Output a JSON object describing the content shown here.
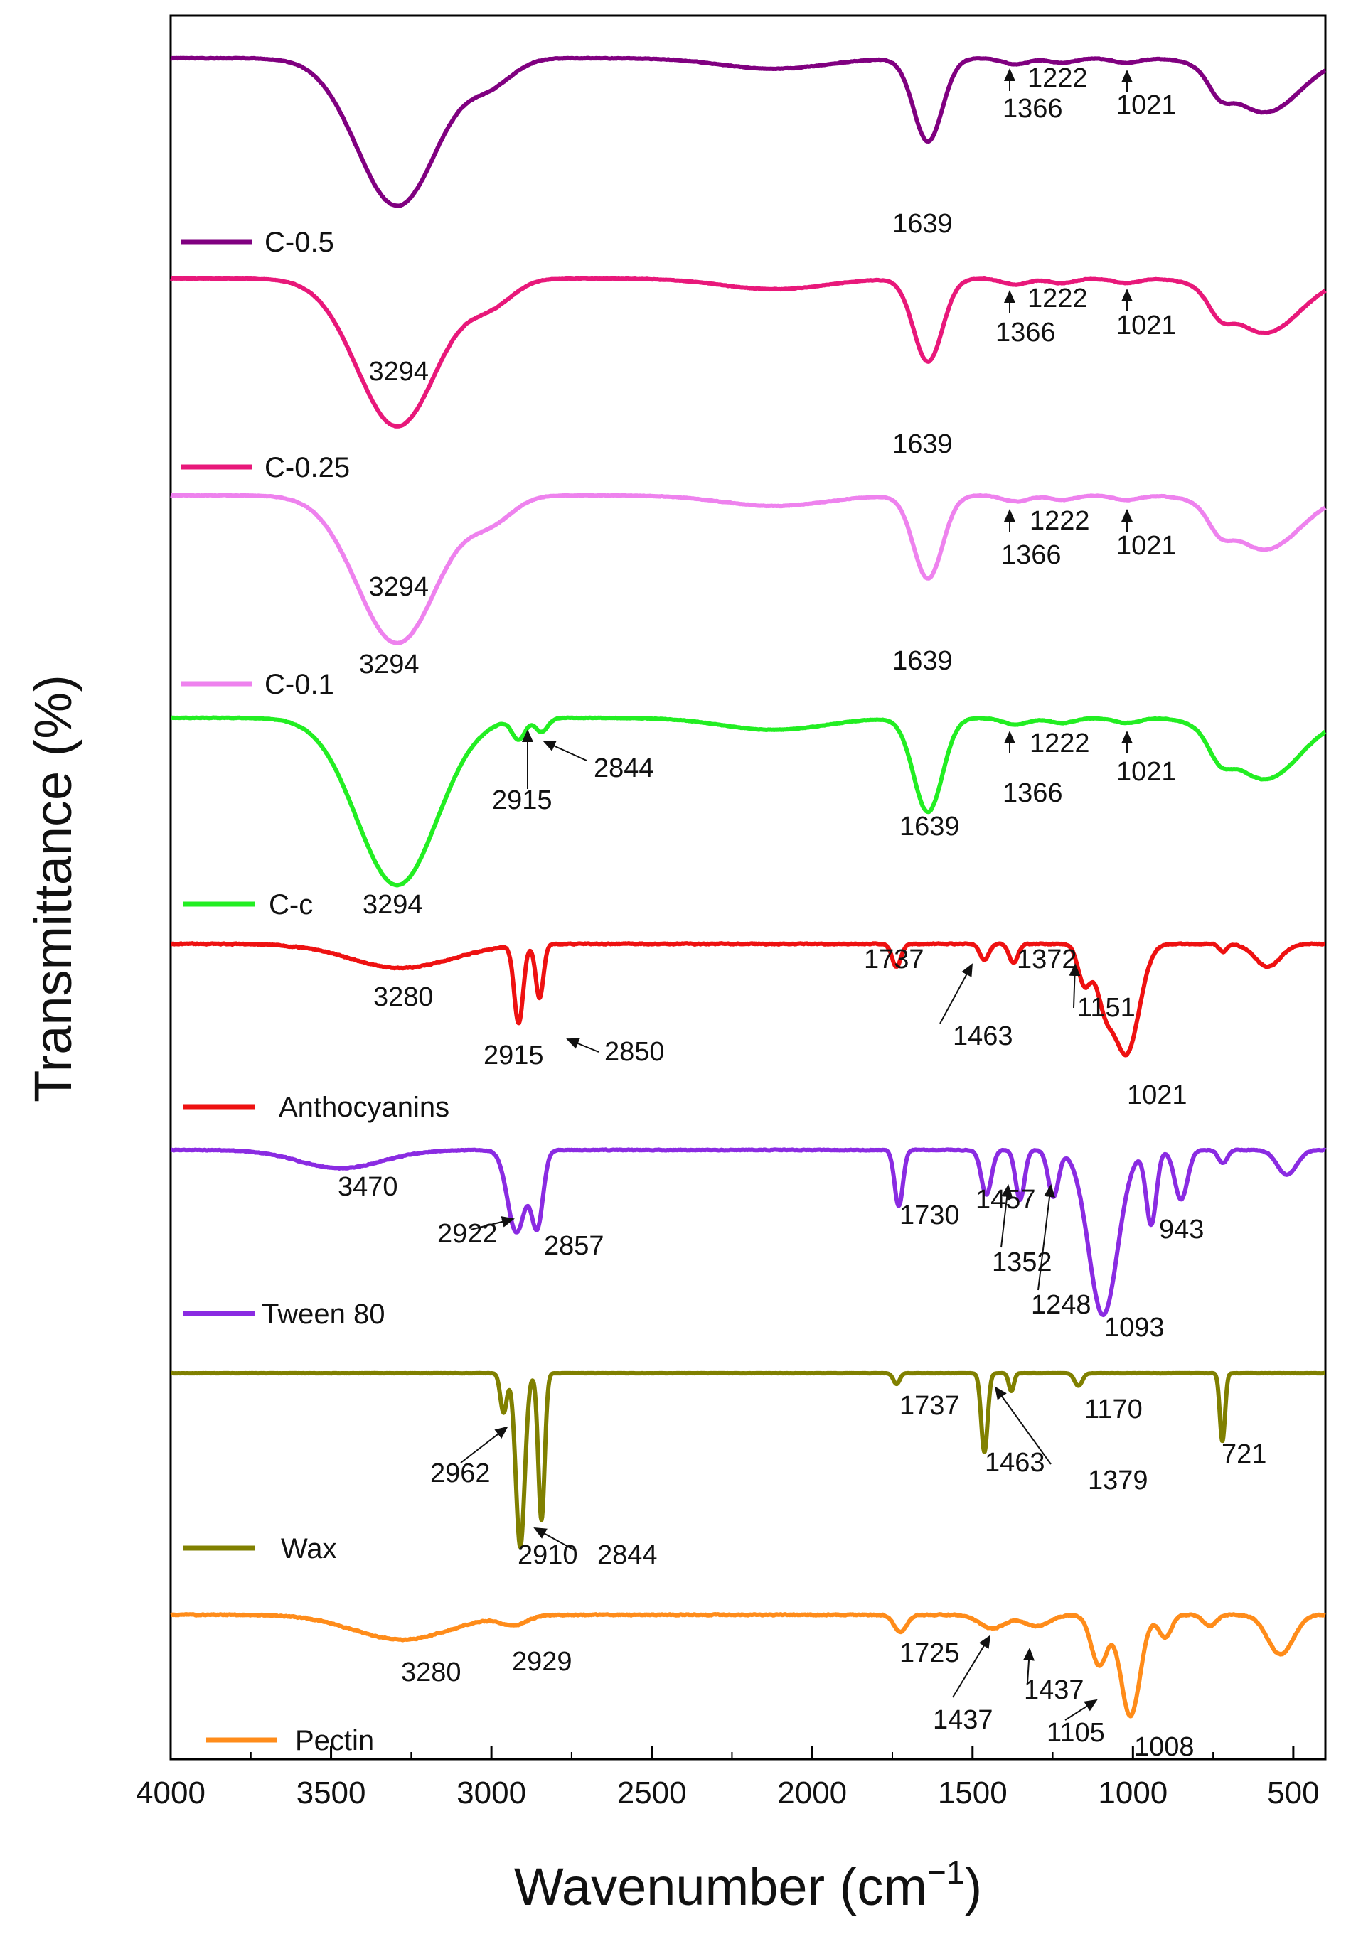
{
  "chart_data": {
    "type": "line",
    "title": "",
    "xlabel": "Wavenumber (cm⁻¹)",
    "xlabel_main": "Wavenumber (cm",
    "xlabel_sup": "−1",
    "xlabel_close": ")",
    "ylabel": "Transmittance (%)",
    "xlim": [
      4000,
      400
    ],
    "x_reversed": true,
    "xticks": [
      4000,
      3500,
      3000,
      2500,
      2000,
      1500,
      1000,
      500
    ],
    "yticks": "none (stacked, offset spectra)",
    "legend_placement": "below each spectrum, left",
    "series": [
      {
        "name": "C-0.5",
        "color": "#800080",
        "baseline": 0.0,
        "wiggle": 0.6,
        "bands": [
          [
            3294,
            125,
            0.98
          ],
          [
            3000,
            70,
            0.15
          ],
          [
            2120,
            160,
            0.07
          ],
          [
            1639,
            45,
            0.55
          ],
          [
            1366,
            40,
            0.04
          ],
          [
            1222,
            40,
            0.03
          ],
          [
            1021,
            40,
            0.03
          ],
          [
            730,
            35,
            0.12
          ],
          [
            590,
            110,
            0.36
          ]
        ],
        "peaks": [
          {
            "label": "3294",
            "wn": 3294
          },
          {
            "label": "1639",
            "wn": 1639
          },
          {
            "label": "1366",
            "wn": 1366
          },
          {
            "label": "1222",
            "wn": 1222
          },
          {
            "label": "1021",
            "wn": 1021
          }
        ]
      },
      {
        "name": "C-0.25",
        "color": "#e8187a",
        "baseline": 0.0,
        "wiggle": 0.6,
        "bands": [
          [
            3294,
            125,
            0.98
          ],
          [
            3000,
            70,
            0.15
          ],
          [
            2120,
            160,
            0.07
          ],
          [
            1639,
            45,
            0.55
          ],
          [
            1366,
            40,
            0.04
          ],
          [
            1222,
            40,
            0.03
          ],
          [
            1021,
            40,
            0.03
          ],
          [
            730,
            35,
            0.12
          ],
          [
            590,
            110,
            0.36
          ]
        ],
        "peaks": [
          {
            "label": "3294",
            "wn": 3294
          },
          {
            "label": "1639",
            "wn": 1639
          },
          {
            "label": "1366",
            "wn": 1366
          },
          {
            "label": "1222",
            "wn": 1222
          },
          {
            "label": "1021",
            "wn": 1021
          }
        ]
      },
      {
        "name": "C-0.1",
        "color": "#ee82ee",
        "baseline": 0.0,
        "wiggle": 0.6,
        "bands": [
          [
            3294,
            125,
            0.98
          ],
          [
            3000,
            70,
            0.15
          ],
          [
            2120,
            160,
            0.07
          ],
          [
            1639,
            45,
            0.55
          ],
          [
            1366,
            40,
            0.04
          ],
          [
            1222,
            40,
            0.03
          ],
          [
            1021,
            40,
            0.03
          ],
          [
            730,
            35,
            0.12
          ],
          [
            590,
            110,
            0.36
          ]
        ],
        "peaks": [
          {
            "label": "3294",
            "wn": 3294
          },
          {
            "label": "1639",
            "wn": 1639
          },
          {
            "label": "1366",
            "wn": 1366
          },
          {
            "label": "1222",
            "wn": 1222
          },
          {
            "label": "1021",
            "wn": 1021
          }
        ]
      },
      {
        "name": "C-c",
        "color": "#22ee22",
        "baseline": 0.0,
        "wiggle": 0.6,
        "bands": [
          [
            3294,
            125,
            0.98
          ],
          [
            2915,
            20,
            0.12
          ],
          [
            2844,
            20,
            0.08
          ],
          [
            2120,
            160,
            0.07
          ],
          [
            1639,
            45,
            0.55
          ],
          [
            1366,
            40,
            0.04
          ],
          [
            1222,
            40,
            0.03
          ],
          [
            1021,
            40,
            0.03
          ],
          [
            730,
            35,
            0.12
          ],
          [
            590,
            110,
            0.36
          ]
        ],
        "peaks": [
          {
            "label": "3294",
            "wn": 3294
          },
          {
            "label": "2915",
            "wn": 2915
          },
          {
            "label": "2844",
            "wn": 2844
          },
          {
            "label": "1639",
            "wn": 1639
          },
          {
            "label": "1366",
            "wn": 1366
          },
          {
            "label": "1222",
            "wn": 1222
          },
          {
            "label": "1021",
            "wn": 1021
          }
        ]
      },
      {
        "name": "Anthocyanins",
        "color": "#ee1111",
        "baseline": 0.0,
        "wiggle": 1.0,
        "bands": [
          [
            3280,
            160,
            0.18
          ],
          [
            2915,
            14,
            0.58
          ],
          [
            2850,
            12,
            0.4
          ],
          [
            1737,
            14,
            0.17
          ],
          [
            1463,
            14,
            0.12
          ],
          [
            1372,
            14,
            0.14
          ],
          [
            1151,
            20,
            0.3
          ],
          [
            1021,
            40,
            0.82
          ],
          [
            1090,
            25,
            0.35
          ],
          [
            720,
            12,
            0.06
          ],
          [
            580,
            40,
            0.17
          ]
        ],
        "peaks": [
          {
            "label": "3280",
            "wn": 3280
          },
          {
            "label": "2915",
            "wn": 2915
          },
          {
            "label": "2850",
            "wn": 2850
          },
          {
            "label": "1737",
            "wn": 1737
          },
          {
            "label": "1463",
            "wn": 1463
          },
          {
            "label": "1372",
            "wn": 1372
          },
          {
            "label": "1151",
            "wn": 1151
          },
          {
            "label": "1021",
            "wn": 1021
          }
        ]
      },
      {
        "name": "Tween 80",
        "color": "#8a2be2",
        "baseline": 0.0,
        "wiggle": 0.8,
        "bands": [
          [
            3470,
            130,
            0.11
          ],
          [
            2922,
            28,
            0.5
          ],
          [
            2857,
            18,
            0.45
          ],
          [
            1730,
            13,
            0.34
          ],
          [
            1457,
            16,
            0.27
          ],
          [
            1352,
            14,
            0.3
          ],
          [
            1248,
            16,
            0.28
          ],
          [
            1093,
            45,
            1.0
          ],
          [
            943,
            16,
            0.45
          ],
          [
            850,
            20,
            0.3
          ],
          [
            720,
            14,
            0.08
          ],
          [
            520,
            30,
            0.15
          ]
        ],
        "peaks": [
          {
            "label": "3470",
            "wn": 3470
          },
          {
            "label": "2922",
            "wn": 2922
          },
          {
            "label": "2857",
            "wn": 2857
          },
          {
            "label": "1730",
            "wn": 1730
          },
          {
            "label": "1457",
            "wn": 1457
          },
          {
            "label": "1352",
            "wn": 1352
          },
          {
            "label": "1248",
            "wn": 1248
          },
          {
            "label": "1093",
            "wn": 1093
          },
          {
            "label": "943",
            "wn": 943
          }
        ]
      },
      {
        "name": "Wax",
        "color": "#808000",
        "baseline": 0.0,
        "wiggle": 0.2,
        "bands": [
          [
            2962,
            10,
            0.22
          ],
          [
            2910,
            14,
            0.97
          ],
          [
            2844,
            10,
            0.82
          ],
          [
            1737,
            10,
            0.06
          ],
          [
            1463,
            10,
            0.44
          ],
          [
            1379,
            8,
            0.1
          ],
          [
            1170,
            12,
            0.07
          ],
          [
            721,
            8,
            0.38
          ]
        ],
        "peaks": [
          {
            "label": "2962",
            "wn": 2962
          },
          {
            "label": "2910",
            "wn": 2910
          },
          {
            "label": "2844",
            "wn": 2844
          },
          {
            "label": "1737",
            "wn": 1737
          },
          {
            "label": "1463",
            "wn": 1463
          },
          {
            "label": "1379",
            "wn": 1379
          },
          {
            "label": "1170",
            "wn": 1170
          },
          {
            "label": "721",
            "wn": 721
          }
        ]
      },
      {
        "name": "Pectin",
        "color": "#ff8c1a",
        "baseline": 0.0,
        "wiggle": 1.1,
        "bands": [
          [
            3280,
            150,
            0.22
          ],
          [
            2929,
            40,
            0.08
          ],
          [
            1725,
            20,
            0.15
          ],
          [
            1437,
            40,
            0.12
          ],
          [
            1300,
            40,
            0.1
          ],
          [
            1105,
            25,
            0.45
          ],
          [
            1008,
            30,
            0.9
          ],
          [
            900,
            20,
            0.2
          ],
          [
            760,
            20,
            0.1
          ],
          [
            540,
            40,
            0.35
          ]
        ],
        "peaks": [
          {
            "label": "3280",
            "wn": 3280
          },
          {
            "label": "2929",
            "wn": 2929
          },
          {
            "label": "1725",
            "wn": 1725
          },
          {
            "label": "1437",
            "wn": 1437
          },
          {
            "label": "1437",
            "wn": 1437
          },
          {
            "label": "1105",
            "wn": 1105
          },
          {
            "label": "1008",
            "wn": 1008
          }
        ]
      }
    ]
  }
}
